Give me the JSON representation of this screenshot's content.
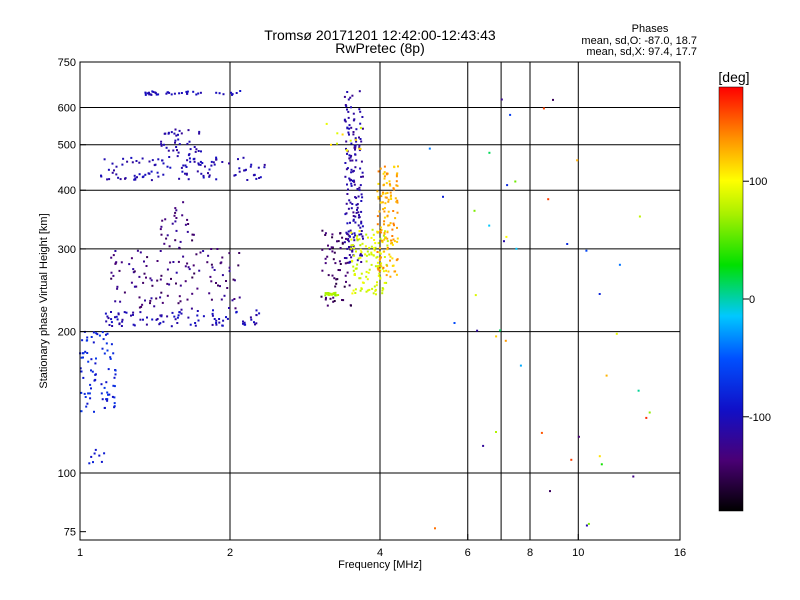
{
  "header": {
    "title_line1": "Tromsø 20171201 12:42:00-12:43:43",
    "title_line2": "RwPretec (8p)"
  },
  "stats": {
    "heading": "Phases",
    "line_o": "mean, sd,O: -87.0, 18.7",
    "line_x": "mean, sd,X: 97.4, 17.7"
  },
  "colorbar": {
    "unit_label": "[deg]",
    "ticks": [
      {
        "value": 100,
        "label": "100"
      },
      {
        "value": 0,
        "label": "0"
      },
      {
        "value": -100,
        "label": "-100"
      }
    ],
    "range": [
      -180,
      180
    ]
  },
  "chart_data": {
    "type": "scatter",
    "xlabel": "Frequency [MHz]",
    "ylabel": "Stationary phase Virtual Height [km]",
    "xscale": "log",
    "yscale": "log",
    "xlim": [
      1,
      16
    ],
    "ylim": [
      72,
      750
    ],
    "x_ticks": [
      {
        "value": 1,
        "label": "1"
      },
      {
        "value": 2,
        "label": "2"
      },
      {
        "value": 4,
        "label": "4"
      },
      {
        "value": 6,
        "label": "6"
      },
      {
        "value": 8,
        "label": "8"
      },
      {
        "value": 10,
        "label": "10"
      },
      {
        "value": 16,
        "label": "16"
      }
    ],
    "x_grid": [
      2,
      4,
      6,
      7,
      8,
      10
    ],
    "y_ticks": [
      {
        "value": 75,
        "label": "75"
      },
      {
        "value": 100,
        "label": "100"
      },
      {
        "value": 200,
        "label": "200"
      },
      {
        "value": 300,
        "label": "300"
      },
      {
        "value": 400,
        "label": "400"
      },
      {
        "value": 500,
        "label": "500"
      },
      {
        "value": 600,
        "label": "600"
      },
      {
        "value": 750,
        "label": "750"
      }
    ],
    "y_grid": [
      100,
      200,
      300,
      400,
      500,
      600
    ],
    "grid": true,
    "color_encoding": "phase [deg]",
    "clusters": [
      {
        "x": [
          1.0,
          1.18
        ],
        "y": [
          135,
          200
        ],
        "phase": [
          -95,
          -65
        ],
        "n": 80
      },
      {
        "x": [
          1.04,
          1.12
        ],
        "y": [
          104,
          112
        ],
        "phase": [
          -95,
          -80
        ],
        "n": 8
      },
      {
        "x": [
          1.12,
          2.3
        ],
        "y": [
          205,
          222
        ],
        "phase": [
          -120,
          -90
        ],
        "n": 90
      },
      {
        "x": [
          1.15,
          2.1
        ],
        "y": [
          222,
          300
        ],
        "phase": [
          -150,
          -110
        ],
        "n": 120
      },
      {
        "x": [
          1.45,
          1.7
        ],
        "y": [
          300,
          380
        ],
        "phase": [
          -150,
          -115
        ],
        "n": 30
      },
      {
        "x": [
          1.1,
          2.35
        ],
        "y": [
          420,
          470
        ],
        "phase": [
          -120,
          -95
        ],
        "n": 110
      },
      {
        "x": [
          1.45,
          1.75
        ],
        "y": [
          470,
          540
        ],
        "phase": [
          -120,
          -100
        ],
        "n": 40
      },
      {
        "x": [
          1.33,
          1.75
        ],
        "y": [
          638,
          650
        ],
        "phase": [
          -110,
          -95
        ],
        "n": 30
      },
      {
        "x": [
          1.8,
          2.1
        ],
        "y": [
          638,
          652
        ],
        "phase": [
          -105,
          -90
        ],
        "n": 8
      },
      {
        "x": [
          3.05,
          3.5
        ],
        "y": [
          225,
          330
        ],
        "phase": [
          -160,
          -130
        ],
        "n": 60
      },
      {
        "x": [
          3.4,
          3.7
        ],
        "y": [
          280,
          650
        ],
        "phase": [
          -125,
          -100
        ],
        "n": 170
      },
      {
        "x": [
          3.1,
          3.3
        ],
        "y": [
          238,
          242
        ],
        "phase": [
          60,
          90
        ],
        "n": 25
      },
      {
        "x": [
          3.5,
          4.15
        ],
        "y": [
          240,
          330
        ],
        "phase": [
          75,
          100
        ],
        "n": 120
      },
      {
        "x": [
          3.95,
          4.35
        ],
        "y": [
          260,
          450
        ],
        "phase": [
          110,
          145
        ],
        "n": 130
      },
      {
        "x": [
          3.1,
          3.9
        ],
        "y": [
          480,
          560
        ],
        "phase": [
          80,
          120
        ],
        "n": 12
      },
      {
        "x": [
          5.0,
          14.0
        ],
        "y": [
          75,
          650
        ],
        "phase": [
          -160,
          170
        ],
        "n": 45
      }
    ]
  }
}
